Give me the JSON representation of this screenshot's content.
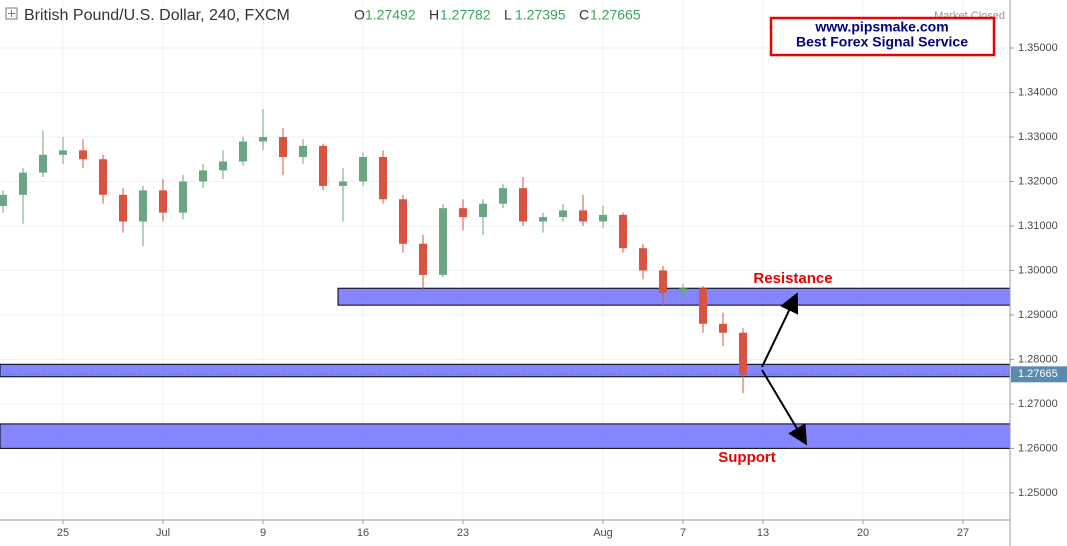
{
  "chart_data": {
    "type": "candlestick",
    "title": "British Pound/U.S. Dollar, 240, FXCM",
    "status": "Market Closed",
    "ohlc": [
      {
        "label": "O",
        "value": 1.27492
      },
      {
        "label": "H",
        "value": 1.27782
      },
      {
        "label": "L",
        "value": 1.27395
      },
      {
        "label": "C",
        "value": 1.27665
      }
    ],
    "watermark": [
      "www.pipsmake.com",
      "Best Forex Signal Service"
    ],
    "x": [
      -3,
      -2,
      -1,
      0,
      1,
      2,
      3,
      4,
      5,
      6,
      7,
      8,
      9,
      10,
      11,
      12,
      13,
      14,
      15,
      16,
      17,
      18,
      19,
      20,
      21,
      22,
      23,
      24,
      25,
      26,
      27,
      28,
      29,
      30,
      31,
      32,
      33,
      34
    ],
    "open": [
      1.3145,
      1.317,
      1.322,
      1.326,
      1.327,
      1.325,
      1.317,
      1.311,
      1.318,
      1.313,
      1.32,
      1.3225,
      1.3245,
      1.329,
      1.33,
      1.3255,
      1.328,
      1.319,
      1.32,
      1.3255,
      1.316,
      1.306,
      1.299,
      1.314,
      1.312,
      1.315,
      1.3185,
      1.311,
      1.312,
      1.3135,
      1.311,
      1.3125,
      1.305,
      1.3,
      1.295,
      1.296,
      1.288,
      1.286
    ],
    "high": [
      1.318,
      1.323,
      1.3315,
      1.33,
      1.3295,
      1.326,
      1.3185,
      1.319,
      1.3205,
      1.3215,
      1.324,
      1.327,
      1.33,
      1.3363,
      1.332,
      1.3295,
      1.3285,
      1.323,
      1.3265,
      1.327,
      1.317,
      1.308,
      1.315,
      1.316,
      1.316,
      1.3195,
      1.321,
      1.313,
      1.315,
      1.317,
      1.3145,
      1.313,
      1.306,
      1.301,
      1.297,
      1.2965,
      1.2905,
      1.287
    ],
    "low": [
      1.313,
      1.3105,
      1.321,
      1.324,
      1.323,
      1.315,
      1.3085,
      1.3055,
      1.311,
      1.3115,
      1.3185,
      1.3205,
      1.3235,
      1.327,
      1.3215,
      1.324,
      1.318,
      1.311,
      1.319,
      1.315,
      1.304,
      1.2957,
      1.2985,
      1.309,
      1.308,
      1.314,
      1.31,
      1.3085,
      1.311,
      1.31,
      1.3095,
      1.304,
      1.298,
      1.292,
      1.293,
      1.286,
      1.283,
      1.2724
    ],
    "close": [
      1.317,
      1.322,
      1.326,
      1.327,
      1.325,
      1.317,
      1.311,
      1.318,
      1.313,
      1.32,
      1.3225,
      1.3245,
      1.329,
      1.33,
      1.3255,
      1.328,
      1.319,
      1.32,
      1.3255,
      1.316,
      1.306,
      1.299,
      1.314,
      1.312,
      1.315,
      1.3185,
      1.311,
      1.312,
      1.3135,
      1.311,
      1.3125,
      1.305,
      1.3,
      1.295,
      1.296,
      1.288,
      1.286,
      1.2766
    ],
    "up_color": "#6ba583",
    "down_color": "#d75442",
    "zones": [
      {
        "low": 1.2922,
        "high": 1.296,
        "start": 13.75
      },
      {
        "low": 1.2761,
        "high": 1.2789
      },
      {
        "low": 1.26,
        "high": 1.2655
      }
    ],
    "zone_color": "#6666ff",
    "annotations": [
      "Resistance",
      "Support"
    ],
    "xlim": [
      -3.15,
      47.35
    ],
    "xticks": [
      {
        "value": 0,
        "label": "25"
      },
      {
        "value": 5,
        "label": "Jul"
      },
      {
        "value": 10,
        "label": "9"
      },
      {
        "value": 15,
        "label": "16"
      },
      {
        "value": 20,
        "label": "23"
      },
      {
        "value": 27,
        "label": "Aug"
      },
      {
        "value": 31,
        "label": "7"
      },
      {
        "value": 35,
        "label": "13"
      },
      {
        "value": 40,
        "label": "20"
      },
      {
        "value": 45,
        "label": "27"
      }
    ],
    "ylim": [
      1.2439,
      1.3608
    ],
    "yticks": [
      {
        "value": 1.25,
        "label": "1.25000"
      },
      {
        "value": 1.26,
        "label": "1.26000"
      },
      {
        "value": 1.27,
        "label": "1.27000"
      },
      {
        "value": 1.28,
        "label": "1.28000"
      },
      {
        "value": 1.29,
        "label": "1.29000"
      },
      {
        "value": 1.3,
        "label": "1.30000"
      },
      {
        "value": 1.31,
        "label": "1.31000"
      },
      {
        "value": 1.32,
        "label": "1.32000"
      },
      {
        "value": 1.33,
        "label": "1.33000"
      },
      {
        "value": 1.34,
        "label": "1.34000"
      },
      {
        "value": 1.35,
        "label": "1.35000"
      }
    ],
    "grid": true
  }
}
